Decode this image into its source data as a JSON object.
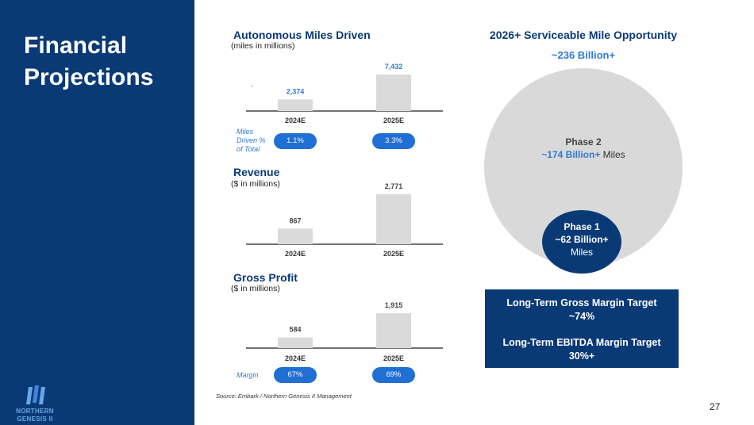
{
  "slide": {
    "title_line1": "Financial",
    "title_line2": "Projections",
    "page_number": "27",
    "source": "Source: Embark / Northern Genesis II Management"
  },
  "logo": {
    "line1": "NORTHERN",
    "line2": "GENESIS II"
  },
  "colors": {
    "navy": "#0a3a76",
    "accent_blue": "#2f7ad6",
    "pill_blue": "#1f6fd4",
    "bar_gray": "#dadada",
    "circle_gray": "#d9d9d9"
  },
  "chart_data": [
    {
      "type": "bar",
      "title": "Autonomous Miles Driven",
      "subtitle": "(miles in millions)",
      "categories": [
        "2024E",
        "2025E"
      ],
      "values": [
        2374,
        7432
      ],
      "value_labels": [
        "2,374",
        "7,432"
      ],
      "unit": "miles in millions",
      "row_label": "Miles Driven % of Total",
      "row_values": [
        "1.1%",
        "3.3%"
      ]
    },
    {
      "type": "bar",
      "title": "Revenue",
      "subtitle": "($ in millions)",
      "categories": [
        "2024E",
        "2025E"
      ],
      "values": [
        867,
        2771
      ],
      "value_labels": [
        "867",
        "2,771"
      ],
      "unit": "$ in millions"
    },
    {
      "type": "bar",
      "title": "Gross Profit",
      "subtitle": "($ in millions)",
      "categories": [
        "2024E",
        "2025E"
      ],
      "values": [
        584,
        1915
      ],
      "value_labels": [
        "584",
        "1,915"
      ],
      "unit": "$ in millions",
      "row_label": "Margin",
      "row_values": [
        "67%",
        "69%"
      ]
    }
  ],
  "row_labels": {
    "miles_line1": "Miles",
    "miles_line2": "Driven %",
    "miles_line3": "of Total",
    "margin": "Margin"
  },
  "opportunity": {
    "title": "2026+ Serviceable Mile Opportunity",
    "total": "~236 Billion+",
    "phase2_name": "Phase 2",
    "phase2_value": "~174 Billion+",
    "phase2_unit": " Miles",
    "phase1_name": "Phase 1",
    "phase1_value": "~62 Billion+",
    "phase1_unit": "Miles"
  },
  "targets": {
    "gross_margin_label": "Long-Term Gross Margin Target",
    "gross_margin_value": "~74%",
    "ebitda_label": "Long-Term EBITDA Margin Target",
    "ebitda_value": "30%+"
  }
}
